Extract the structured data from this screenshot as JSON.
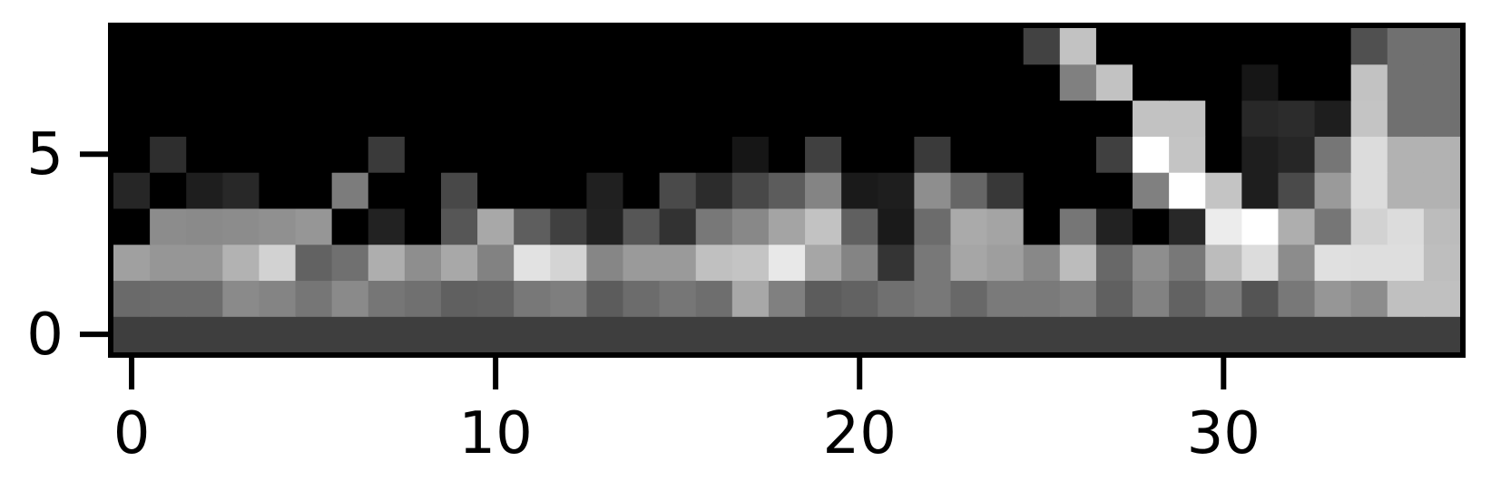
{
  "chart_data": {
    "type": "heatmap",
    "title": "",
    "xlabel": "",
    "ylabel": "",
    "colormap": "gray",
    "x_ticks": [
      0,
      10,
      20,
      30
    ],
    "y_ticks": [
      0,
      5
    ],
    "x_tick_labels": [
      "0",
      "10",
      "20",
      "30"
    ],
    "y_tick_labels": [
      "0",
      "5"
    ],
    "xlim": [
      -0.5,
      36.5
    ],
    "ylim": [
      -0.5,
      8.5
    ],
    "y_axis_direction": "up",
    "grid": false,
    "n_cols": 37,
    "n_rows": 9,
    "value_range": [
      0,
      255
    ],
    "rows": [
      [
        62,
        62,
        62,
        62,
        62,
        62,
        62,
        62,
        62,
        62,
        62,
        62,
        62,
        62,
        62,
        62,
        62,
        62,
        62,
        62,
        62,
        62,
        62,
        62,
        62,
        62,
        62,
        62,
        62,
        62,
        62,
        62,
        62,
        62,
        62,
        62,
        62
      ],
      [
        106,
        108,
        108,
        138,
        132,
        118,
        138,
        118,
        112,
        96,
        98,
        120,
        126,
        92,
        108,
        118,
        110,
        168,
        128,
        92,
        98,
        112,
        120,
        104,
        122,
        122,
        128,
        96,
        130,
        98,
        124,
        84,
        120,
        150,
        140,
        192,
        192
      ],
      [
        160,
        150,
        150,
        178,
        210,
        98,
        112,
        174,
        142,
        168,
        130,
        226,
        212,
        134,
        154,
        154,
        192,
        196,
        232,
        166,
        132,
        52,
        120,
        166,
        158,
        136,
        188,
        104,
        142,
        120,
        188,
        220,
        140,
        224,
        222,
        222,
        190
      ],
      [
        0,
        140,
        138,
        140,
        144,
        150,
        0,
        34,
        0,
        86,
        168,
        94,
        64,
        34,
        86,
        50,
        120,
        136,
        164,
        194,
        96,
        26,
        108,
        170,
        164,
        0,
        118,
        34,
        0,
        40,
        236,
        255,
        174,
        118,
        210,
        220,
        188
      ],
      [
        38,
        0,
        30,
        40,
        0,
        0,
        124,
        0,
        0,
        72,
        0,
        0,
        0,
        32,
        0,
        74,
        44,
        72,
        92,
        132,
        26,
        30,
        142,
        102,
        56,
        0,
        0,
        0,
        128,
        255,
        196,
        30,
        74,
        154,
        220,
        178,
        178
      ],
      [
        0,
        46,
        0,
        0,
        0,
        0,
        0,
        58,
        0,
        0,
        0,
        0,
        0,
        0,
        0,
        0,
        0,
        22,
        0,
        64,
        0,
        0,
        58,
        0,
        0,
        0,
        0,
        64,
        255,
        196,
        0,
        30,
        38,
        118,
        220,
        178,
        178
      ],
      [
        0,
        0,
        0,
        0,
        0,
        0,
        0,
        0,
        0,
        0,
        0,
        0,
        0,
        0,
        0,
        0,
        0,
        0,
        0,
        0,
        0,
        0,
        0,
        0,
        0,
        0,
        0,
        0,
        194,
        194,
        0,
        40,
        44,
        30,
        196,
        112,
        112
      ],
      [
        0,
        0,
        0,
        0,
        0,
        0,
        0,
        0,
        0,
        0,
        0,
        0,
        0,
        0,
        0,
        0,
        0,
        0,
        0,
        0,
        0,
        0,
        0,
        0,
        0,
        0,
        128,
        194,
        0,
        0,
        0,
        22,
        0,
        0,
        194,
        112,
        112
      ],
      [
        0,
        0,
        0,
        0,
        0,
        0,
        0,
        0,
        0,
        0,
        0,
        0,
        0,
        0,
        0,
        0,
        0,
        0,
        0,
        0,
        0,
        0,
        0,
        0,
        0,
        66,
        194,
        0,
        0,
        0,
        0,
        0,
        0,
        0,
        80,
        112,
        112
      ]
    ]
  }
}
